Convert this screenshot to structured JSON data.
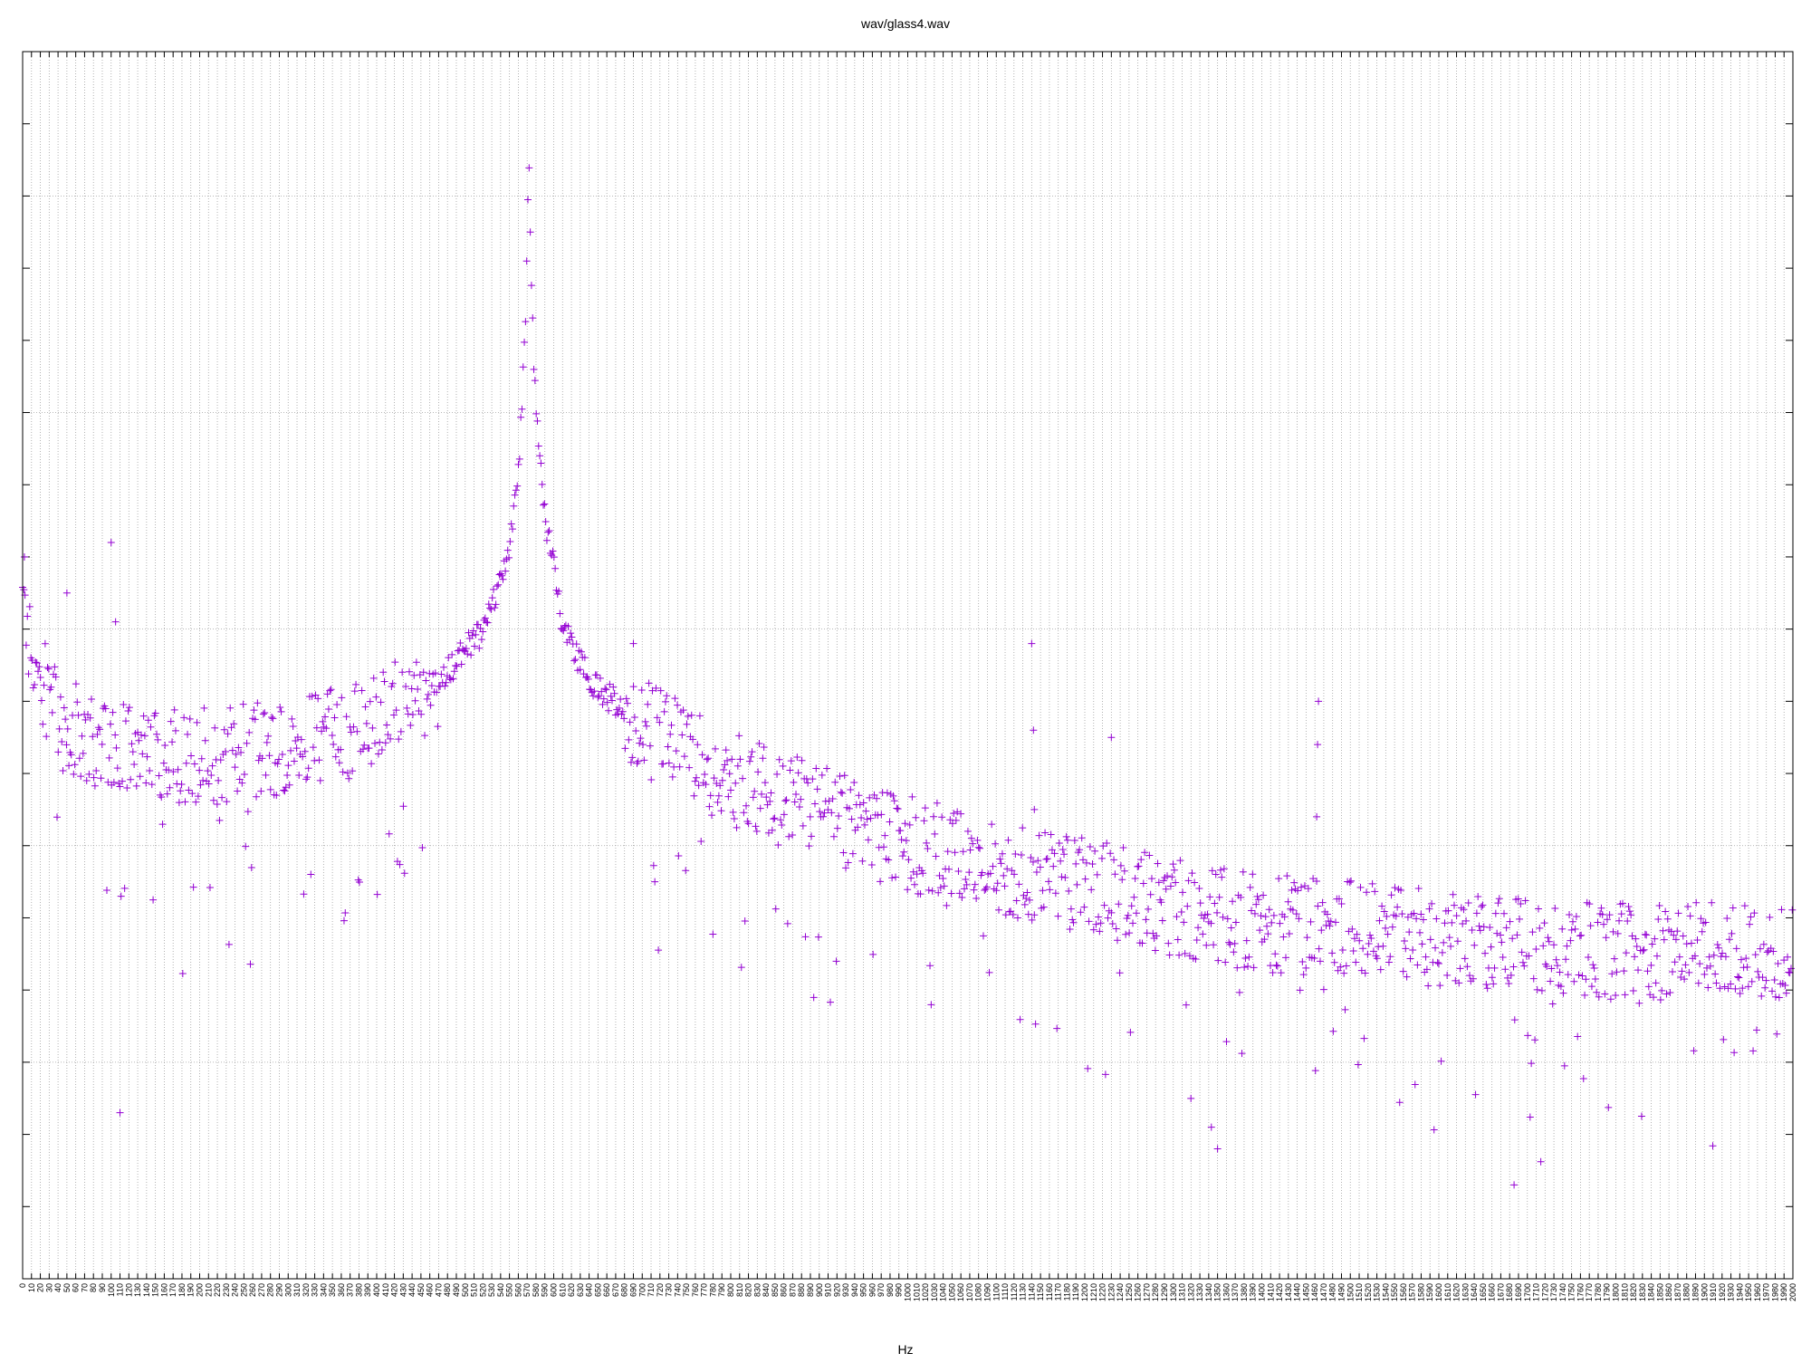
{
  "chart_data": {
    "type": "scatter",
    "title": "wav/glass4.wav",
    "xlabel": "Hz",
    "ylabel": "",
    "xlim": [
      0,
      2000
    ],
    "x_tick_step": 10,
    "y_ticks": [
      0,
      1,
      2,
      3,
      4,
      5,
      6,
      7,
      8,
      9,
      10,
      11,
      12,
      13,
      14,
      15,
      16,
      17
    ],
    "y_major_grid": [
      3,
      6,
      9,
      12,
      15
    ],
    "ylim": [
      0,
      17
    ],
    "grid": true,
    "legend": "none",
    "marker": "plus",
    "series_color": "#9400d3",
    "noise_level_knots": [
      [
        0,
        9.6
      ],
      [
        10,
        8.6
      ],
      [
        40,
        7.8
      ],
      [
        100,
        7.4
      ],
      [
        200,
        7.3
      ],
      [
        300,
        7.4
      ],
      [
        400,
        7.8
      ],
      [
        470,
        8.3
      ],
      [
        520,
        9.0
      ],
      [
        545,
        9.8
      ],
      [
        560,
        11.1
      ],
      [
        568,
        13.3
      ],
      [
        572,
        15.4
      ],
      [
        578,
        12.4
      ],
      [
        590,
        10.6
      ],
      [
        610,
        9.1
      ],
      [
        640,
        8.3
      ],
      [
        700,
        7.7
      ],
      [
        800,
        7.0
      ],
      [
        900,
        6.5
      ],
      [
        1000,
        6.1
      ],
      [
        1100,
        5.8
      ],
      [
        1200,
        5.5
      ],
      [
        1300,
        5.2
      ],
      [
        1400,
        5.0
      ],
      [
        1500,
        4.9
      ],
      [
        1600,
        4.8
      ],
      [
        1700,
        4.7
      ],
      [
        1800,
        4.6
      ],
      [
        1900,
        4.6
      ],
      [
        2000,
        4.6
      ]
    ],
    "outliers": [
      [
        2,
        10.0
      ],
      [
        100,
        10.2
      ],
      [
        105,
        9.1
      ],
      [
        50,
        9.5
      ],
      [
        110,
        2.3
      ],
      [
        1140,
        8.8
      ],
      [
        1142,
        7.6
      ],
      [
        1143,
        6.5
      ],
      [
        1462,
        6.4
      ],
      [
        1463,
        7.4
      ],
      [
        1464,
        8.0
      ],
      [
        1685,
        1.3
      ],
      [
        1343,
        2.1
      ],
      [
        1350,
        1.8
      ],
      [
        1230,
        7.5
      ],
      [
        690,
        8.8
      ]
    ]
  }
}
